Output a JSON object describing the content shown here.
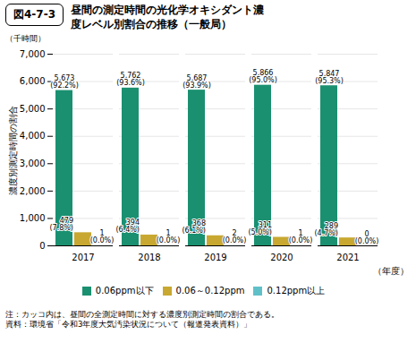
{
  "chart_data": {
    "type": "bar",
    "figure_number": "図4-7-3",
    "title": "昼間の測定時間の光化学オキシダント濃\n度レベル別割合の推移（一般局）",
    "ylabel": "濃度別測定時間の割合",
    "y_unit": "（千時間）",
    "xlabel": "（年度）",
    "categories": [
      "2017",
      "2018",
      "2019",
      "2020",
      "2021"
    ],
    "series": [
      {
        "name": "0.06ppm以下",
        "color": "#1a9070",
        "values": [
          5673,
          5762,
          5687,
          5866,
          5847
        ],
        "value_labels": [
          "5,673",
          "5,762",
          "5,687",
          "5,866",
          "5,847"
        ],
        "share_labels": [
          "(92.2%)",
          "(93.6%)",
          "(93.9%)",
          "(95.0%)",
          "(95.3%)"
        ]
      },
      {
        "name": "0.06～0.12ppm",
        "color": "#c8a830",
        "values": [
          479,
          394,
          368,
          311,
          289
        ],
        "share_labels": [
          "(7.8%)",
          "(6.4%)",
          "(6.1%)",
          "(5.0%)",
          "(4.7%)"
        ]
      },
      {
        "name": "0.12ppm以上",
        "color": "#60c0c8",
        "values": [
          1,
          1,
          2,
          1,
          0
        ],
        "share_labels": [
          "(0.0%)",
          "(0.0%)",
          "(0.0%)",
          "(0.0%)",
          "(0.0%)"
        ]
      }
    ],
    "ylim": [
      0,
      7000
    ],
    "yticks": [
      0,
      {
        "value": 1000,
        "label": "1,000"
      },
      {
        "value": 2000,
        "label": "2,000"
      },
      {
        "value": 3000,
        "label": "3,000"
      },
      {
        "value": 4000,
        "label": "4,000"
      },
      {
        "value": 5000,
        "label": "5,000"
      },
      {
        "value": 6000,
        "label": "6,000"
      },
      {
        "value": 7000,
        "label": "7,000"
      }
    ],
    "grid": true,
    "legend": "bottom",
    "data_labels": true,
    "notes": [
      "注：カッコ内は、昼間の全測定時間に対する濃度別測定時間の割合である。",
      "資料：環境省「令和3年度大気汚染状況について（報道発表資料）」"
    ]
  }
}
